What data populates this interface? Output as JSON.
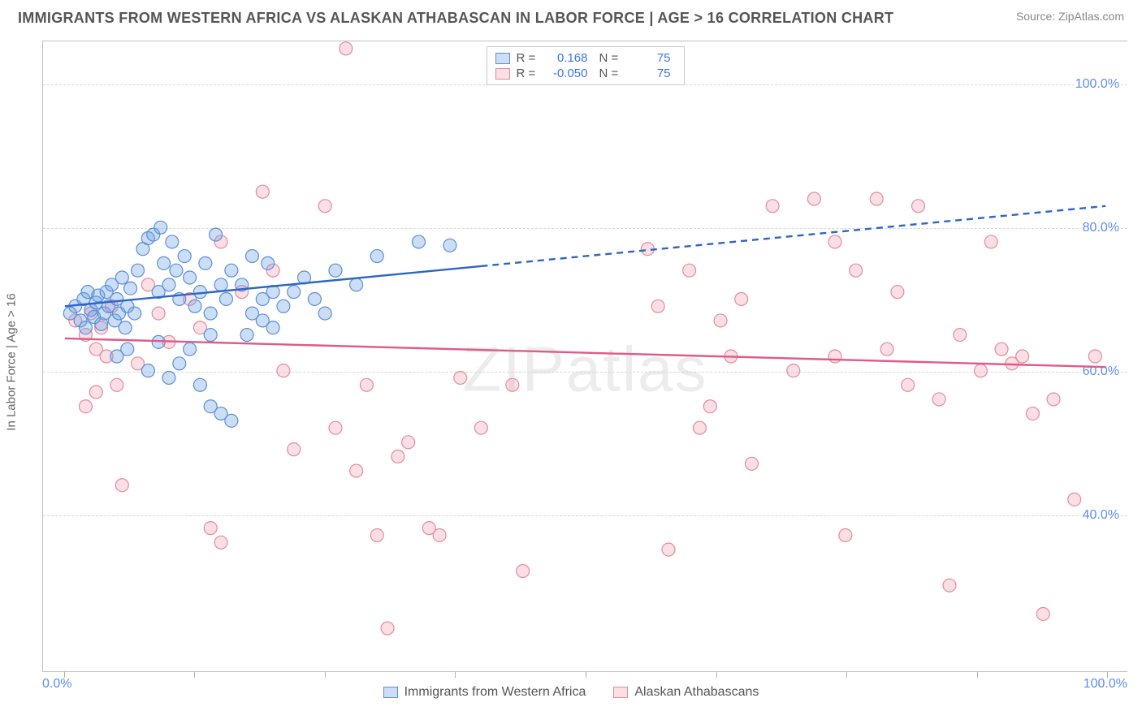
{
  "header": {
    "title": "IMMIGRANTS FROM WESTERN AFRICA VS ALASKAN ATHABASCAN IN LABOR FORCE | AGE > 16 CORRELATION CHART",
    "source_prefix": "Source: ",
    "source_name": "ZipAtlas.com"
  },
  "watermark": "ZIPatlas",
  "axes": {
    "y_title": "In Labor Force | Age > 16",
    "x_min_label": "0.0%",
    "x_max_label": "100.0%",
    "x_domain": [
      -2,
      102
    ],
    "y_domain": [
      18,
      106
    ],
    "y_ticks": [
      {
        "v": 40,
        "label": "40.0%"
      },
      {
        "v": 60,
        "label": "60.0%"
      },
      {
        "v": 80,
        "label": "80.0%"
      },
      {
        "v": 100,
        "label": "100.0%"
      }
    ],
    "x_ticks": [
      0,
      12.5,
      25,
      37.5,
      50,
      62.5,
      75,
      87.5,
      100
    ]
  },
  "styling": {
    "background": "#ffffff",
    "grid_color": "#d8d8d8",
    "axis_color": "#c0c0c0",
    "tick_label_color": "#5b8def",
    "title_color": "#555555",
    "source_color": "#888888",
    "marker_radius": 8,
    "marker_stroke_width": 1.2,
    "line_width": 2.4,
    "title_fontsize": 18,
    "label_fontsize": 16
  },
  "series": [
    {
      "id": "western_africa",
      "name": "Immigrants from Western Africa",
      "fill": "rgba(110,160,230,0.35)",
      "stroke": "#5a8fd6",
      "line_color": "#2e66c4",
      "R": "0.168",
      "N": "75",
      "trend": {
        "x1": 0,
        "y1": 69.0,
        "x2": 100,
        "y2": 83.0,
        "solid_until_x": 40
      },
      "points": [
        [
          0.5,
          68
        ],
        [
          1,
          69
        ],
        [
          1.5,
          67
        ],
        [
          1.8,
          70
        ],
        [
          2,
          66
        ],
        [
          2.2,
          71
        ],
        [
          2.5,
          68.5
        ],
        [
          2.8,
          67.5
        ],
        [
          3,
          69.5
        ],
        [
          3.2,
          70.5
        ],
        [
          3.5,
          66.5
        ],
        [
          3.8,
          68
        ],
        [
          4,
          71
        ],
        [
          4.2,
          69
        ],
        [
          4.5,
          72
        ],
        [
          4.8,
          67
        ],
        [
          5,
          70
        ],
        [
          5.2,
          68
        ],
        [
          5.5,
          73
        ],
        [
          5.8,
          66
        ],
        [
          6,
          69
        ],
        [
          6.3,
          71.5
        ],
        [
          6.7,
          68
        ],
        [
          7,
          74
        ],
        [
          5,
          62
        ],
        [
          6,
          63
        ],
        [
          7.5,
          77
        ],
        [
          8,
          78.5
        ],
        [
          8.5,
          79
        ],
        [
          9,
          71
        ],
        [
          9.2,
          80
        ],
        [
          9.5,
          75
        ],
        [
          10,
          72
        ],
        [
          10.3,
          78
        ],
        [
          10.7,
          74
        ],
        [
          11,
          70
        ],
        [
          11.5,
          76
        ],
        [
          12,
          73
        ],
        [
          12.5,
          69
        ],
        [
          13,
          71
        ],
        [
          13.5,
          75
        ],
        [
          14,
          68
        ],
        [
          14.5,
          79
        ],
        [
          15,
          72
        ],
        [
          15.5,
          70
        ],
        [
          16,
          74
        ],
        [
          8,
          60
        ],
        [
          9,
          64
        ],
        [
          10,
          59
        ],
        [
          11,
          61
        ],
        [
          12,
          63
        ],
        [
          13,
          58
        ],
        [
          14,
          65
        ],
        [
          14,
          55
        ],
        [
          15,
          54
        ],
        [
          16,
          53
        ],
        [
          17,
          72
        ],
        [
          18,
          76
        ],
        [
          19,
          70
        ],
        [
          19.5,
          75
        ],
        [
          20,
          71
        ],
        [
          17.5,
          65
        ],
        [
          18,
          68
        ],
        [
          19,
          67
        ],
        [
          20,
          66
        ],
        [
          21,
          69
        ],
        [
          22,
          71
        ],
        [
          23,
          73
        ],
        [
          24,
          70
        ],
        [
          25,
          68
        ],
        [
          26,
          74
        ],
        [
          28,
          72
        ],
        [
          30,
          76
        ],
        [
          34,
          78
        ],
        [
          37,
          77.5
        ]
      ]
    },
    {
      "id": "athabascan",
      "name": "Alaskan Athabascans",
      "fill": "rgba(240,150,170,0.30)",
      "stroke": "#e48aa0",
      "line_color": "#e05a8a",
      "R": "-0.050",
      "N": "75",
      "trend": {
        "x1": 0,
        "y1": 64.5,
        "x2": 100,
        "y2": 60.5,
        "solid_until_x": 100
      },
      "points": [
        [
          1,
          67
        ],
        [
          2,
          65
        ],
        [
          2.5,
          68
        ],
        [
          3,
          63
        ],
        [
          3.5,
          66
        ],
        [
          4,
          62
        ],
        [
          4.5,
          69
        ],
        [
          5,
          58
        ],
        [
          2,
          55
        ],
        [
          3,
          57
        ],
        [
          5.5,
          44
        ],
        [
          14,
          38
        ],
        [
          15,
          36
        ],
        [
          7,
          61
        ],
        [
          8,
          72
        ],
        [
          9,
          68
        ],
        [
          10,
          64
        ],
        [
          12,
          70
        ],
        [
          13,
          66
        ],
        [
          15,
          78
        ],
        [
          17,
          71
        ],
        [
          19,
          85
        ],
        [
          20,
          74
        ],
        [
          21,
          60
        ],
        [
          22,
          49
        ],
        [
          25,
          83
        ],
        [
          26,
          52
        ],
        [
          27,
          105
        ],
        [
          28,
          46
        ],
        [
          29,
          58
        ],
        [
          30,
          37
        ],
        [
          31,
          24
        ],
        [
          32,
          48
        ],
        [
          33,
          50
        ],
        [
          35,
          38
        ],
        [
          36,
          37
        ],
        [
          38,
          59
        ],
        [
          40,
          52
        ],
        [
          43,
          58
        ],
        [
          44,
          32
        ],
        [
          56,
          77
        ],
        [
          57,
          69
        ],
        [
          58,
          35
        ],
        [
          60,
          74
        ],
        [
          62,
          55
        ],
        [
          63,
          67
        ],
        [
          64,
          62
        ],
        [
          65,
          70
        ],
        [
          66,
          47
        ],
        [
          68,
          83
        ],
        [
          70,
          60
        ],
        [
          72,
          84
        ],
        [
          74,
          78
        ],
        [
          74,
          62
        ],
        [
          75,
          37
        ],
        [
          76,
          74
        ],
        [
          78,
          84
        ],
        [
          79,
          63
        ],
        [
          80,
          71
        ],
        [
          81,
          58
        ],
        [
          82,
          83
        ],
        [
          84,
          56
        ],
        [
          85,
          30
        ],
        [
          86,
          65
        ],
        [
          88,
          60
        ],
        [
          89,
          78
        ],
        [
          90,
          63
        ],
        [
          91,
          61
        ],
        [
          92,
          62
        ],
        [
          93,
          54
        ],
        [
          94,
          26
        ],
        [
          95,
          56
        ],
        [
          97,
          42
        ],
        [
          99,
          62
        ],
        [
          61,
          52
        ]
      ]
    }
  ],
  "legend_top": {
    "R_label": "R =",
    "N_label": "N ="
  },
  "legend_bottom_series_order": [
    "western_africa",
    "athabascan"
  ]
}
